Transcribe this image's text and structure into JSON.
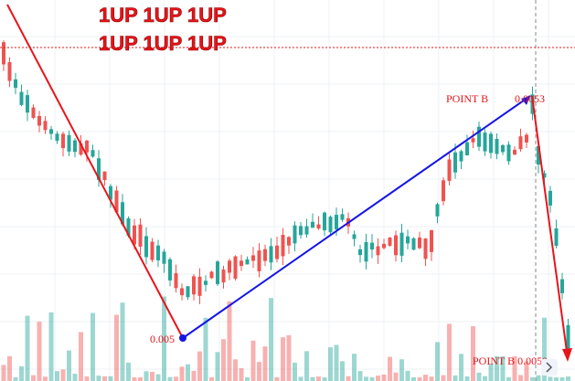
{
  "banner": {
    "line1": "1UP 1UP 1UP",
    "line2": "1UP 1UP 1UP"
  },
  "annotations": {
    "point_b_top_label": "POINT B",
    "point_b_top_value": "0.0053",
    "low_value": "0.005",
    "point_b_bottom": "POINT B 0.0050"
  }
}
